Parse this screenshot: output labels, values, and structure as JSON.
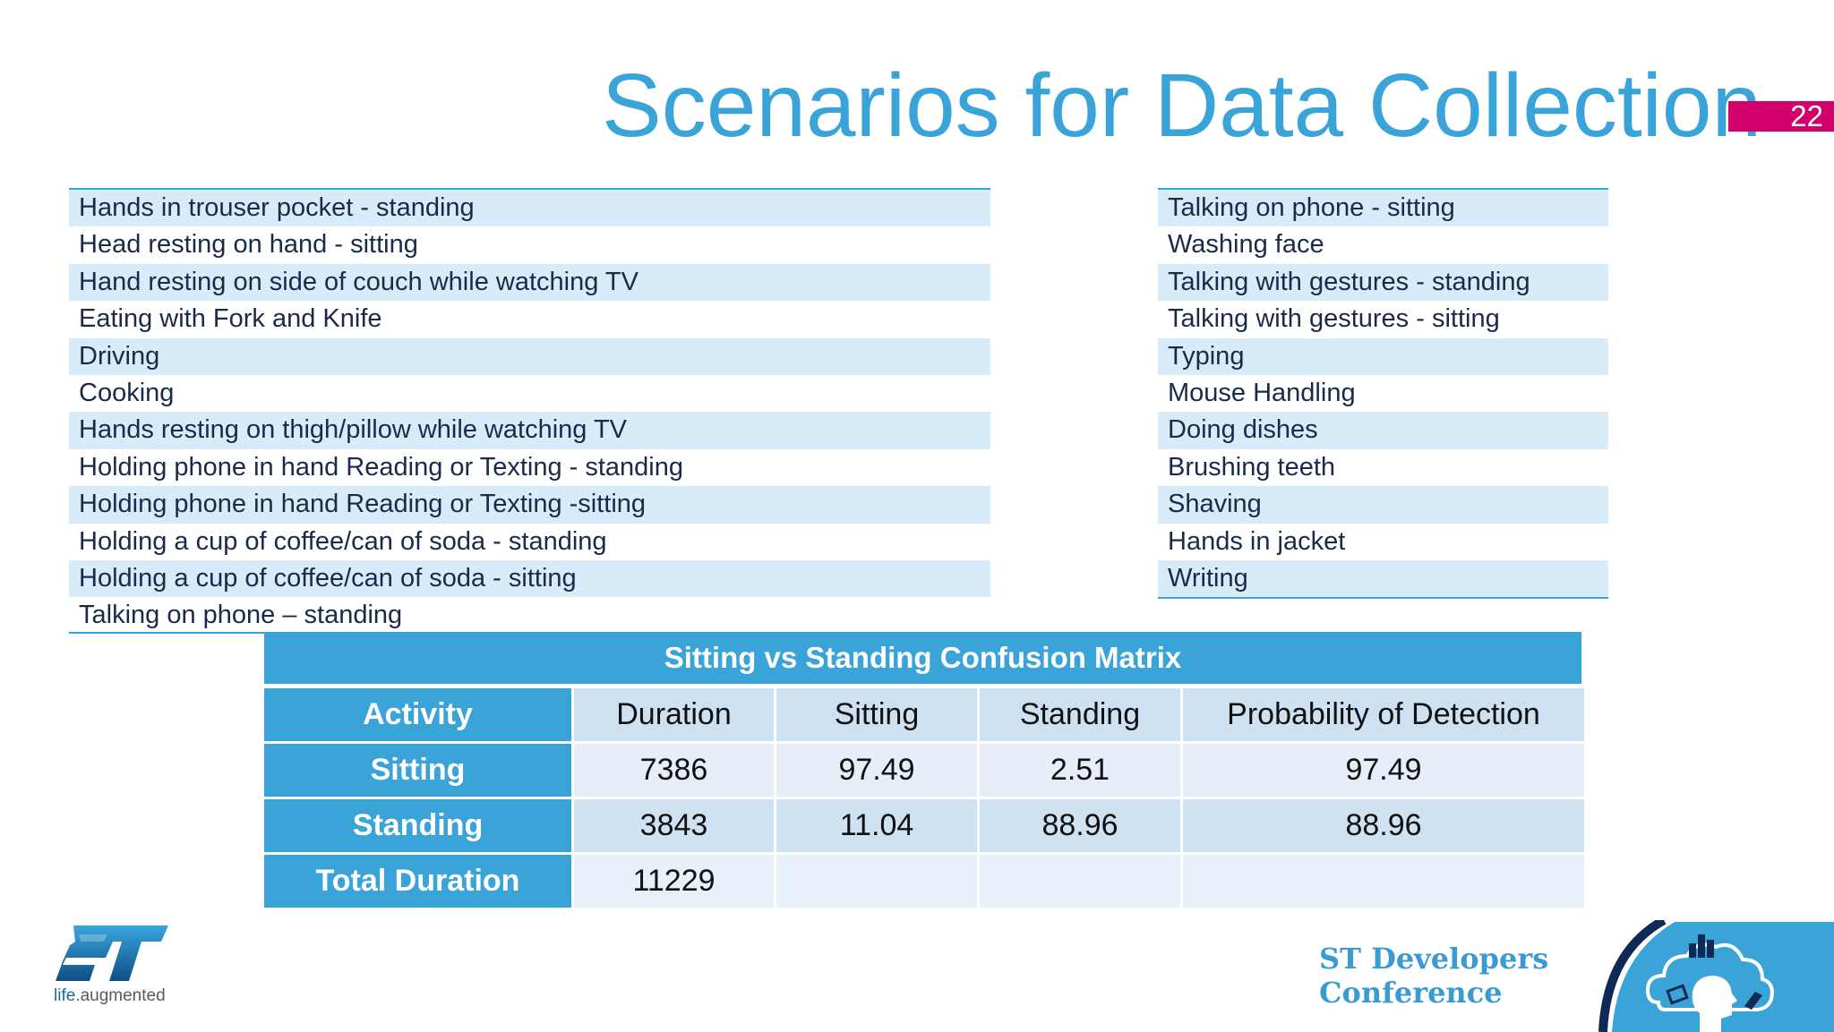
{
  "slide": {
    "title": "Scenarios for Data Collection",
    "page_number": "22"
  },
  "scenarios_left": [
    "Hands in trouser pocket - standing",
    "Head resting on hand - sitting",
    "Hand resting on side of couch while watching TV",
    "Eating with Fork and Knife",
    "Driving",
    "Cooking",
    "Hands resting on thigh/pillow while watching TV",
    "Holding phone in hand Reading or Texting - standing",
    "Holding phone in hand Reading or Texting -sitting",
    "Holding a cup of coffee/can of soda - standing",
    "Holding a cup of coffee/can of soda - sitting",
    "Talking on phone – standing"
  ],
  "scenarios_right": [
    "Talking on phone - sitting",
    "Washing face",
    "Talking with gestures - standing",
    "Talking with gestures - sitting",
    "Typing",
    "Mouse Handling",
    "Doing dishes",
    "Brushing teeth",
    "Shaving",
    "Hands in jacket",
    "Writing"
  ],
  "matrix": {
    "title": "Sitting vs Standing Confusion Matrix",
    "header": [
      "Activity",
      "Duration",
      "Sitting",
      "Standing",
      "Probability of Detection"
    ],
    "rows": [
      [
        "Sitting",
        "7386",
        "97.49",
        "2.51",
        "97.49"
      ],
      [
        "Standing",
        "3843",
        "11.04",
        "88.96",
        "88.96"
      ],
      [
        "Total Duration",
        "11229",
        "",
        "",
        ""
      ]
    ]
  },
  "footer": {
    "logo_tag_prefix": "life",
    "logo_tag_suffix": ".augmented",
    "conference_line1": "ST Developers",
    "conference_line2": "Conference"
  },
  "colors": {
    "accent_blue": "#3aa3d8",
    "badge_magenta": "#d1006c",
    "row_stripe": "#d8ebf8"
  },
  "icons": [
    "st-logo-icon",
    "cloud-head-icon"
  ]
}
